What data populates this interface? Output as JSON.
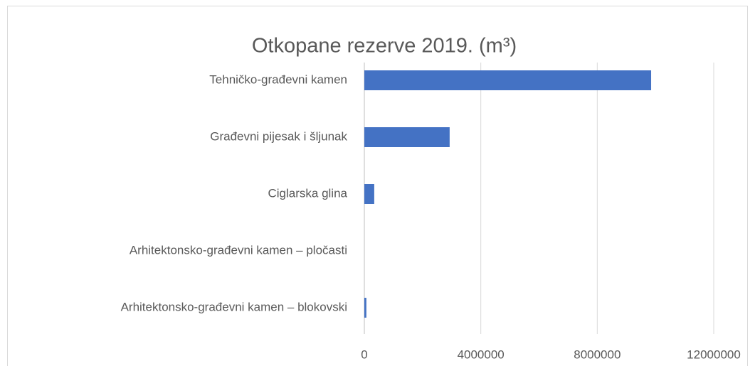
{
  "chart_data": {
    "type": "bar",
    "orientation": "horizontal",
    "title": "Otkopane rezerve 2019. (m³)",
    "categories": [
      "Tehničko-građevni kamen",
      "Građevni pijesak i šljunak",
      "Ciglarska glina",
      "Arhitektonsko-građevni kamen – pločasti",
      "Arhitektonsko-građevni kamen – blokovski"
    ],
    "values": [
      9850000,
      2930000,
      340000,
      0,
      70000
    ],
    "color": "#4472c4",
    "xlim": [
      0,
      12000000
    ],
    "xticks": [
      0,
      4000000,
      8000000,
      12000000
    ],
    "grid": true
  }
}
